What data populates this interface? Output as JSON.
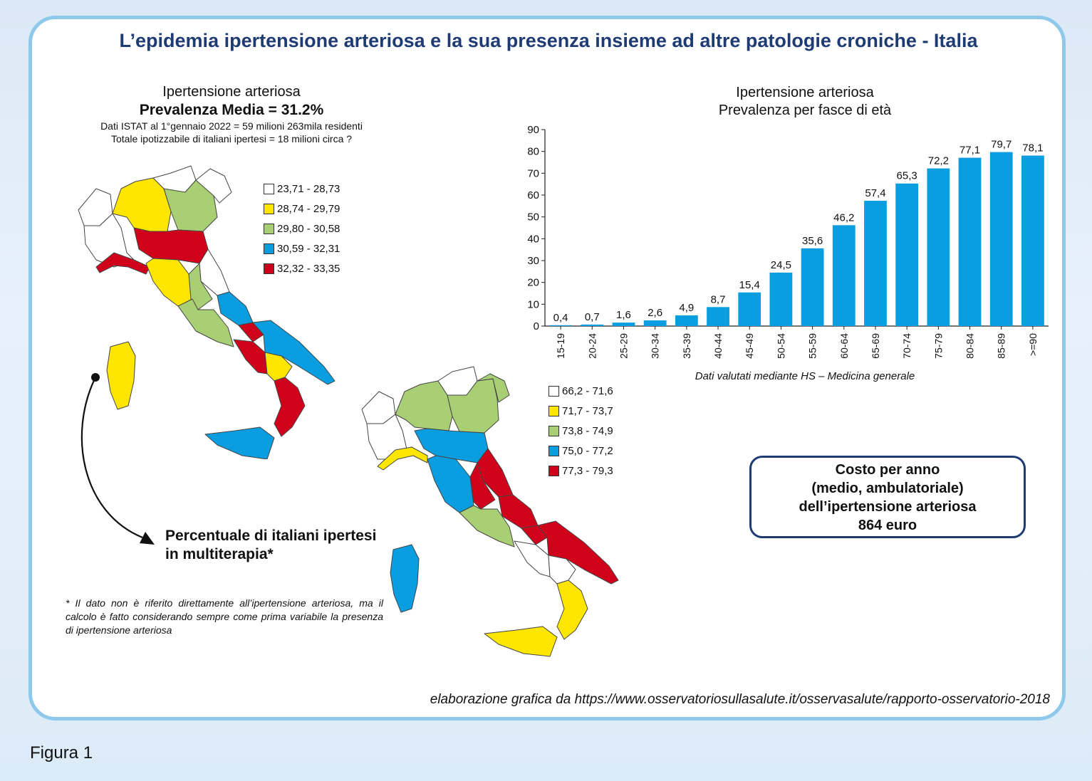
{
  "title": "L’epidemia ipertensione arteriosa e la sua presenza insieme ad altre patologie croniche - Italia",
  "left_block": {
    "line1": "Ipertensione arteriosa",
    "line2": "Prevalenza Media = 31.2%",
    "line3": "Dati ISTAT al 1°gennaio 2022 = 59 milioni 263mila residenti",
    "line4": "Totale ipotizzabile di italiani ipertesi = 18 milioni circa ?"
  },
  "legend1": [
    {
      "label": "23,71 - 28,73",
      "color": "#ffffff"
    },
    {
      "label": "28,74 - 29,79",
      "color": "#ffe600"
    },
    {
      "label": "29,80 - 30,58",
      "color": "#a9cf74"
    },
    {
      "label": "30,59 - 32,31",
      "color": "#0a9ee0"
    },
    {
      "label": "32,32 - 33,35",
      "color": "#d0021b"
    }
  ],
  "legend2": [
    {
      "label": "66,2 - 71,6",
      "color": "#ffffff"
    },
    {
      "label": "71,7 - 73,7",
      "color": "#ffe600"
    },
    {
      "label": "73,8 - 74,9",
      "color": "#a9cf74"
    },
    {
      "label": "75,0 - 77,2",
      "color": "#0a9ee0"
    },
    {
      "label": "77,3 - 79,3",
      "color": "#d0021b"
    }
  ],
  "multiterapia": {
    "line1": "Percentuale di italiani ipertesi",
    "line2": "in multiterapia*"
  },
  "note": "* Il dato non è riferito direttamente all’ipertensione arteriosa, ma il calcolo è fatto considerando sempre come prima variabile la presenza di ipertensione arteriosa",
  "cost": {
    "line1": "Costo per anno",
    "line2": "(medio, ambulatoriale)",
    "line3": "dell’ipertensione arteriosa",
    "line4": "864 euro"
  },
  "source": "elaborazione grafica da https://www.osservatoriosullasalute.it/osservasalute/rapporto-osservatorio-2018",
  "figure_label": "Figura 1",
  "chart_data": {
    "type": "bar",
    "title": "Ipertensione arteriosa",
    "subtitle": "Prevalenza per fasce di età",
    "caption": "Dati valutati mediante HS – Medicina generale",
    "categories": [
      "15-19",
      "20-24",
      "25-29",
      "30-34",
      "35-39",
      "40-44",
      "45-49",
      "50-54",
      "55-59",
      "60-64",
      "65-69",
      "70-74",
      "75-79",
      "80-84",
      "85-89",
      ">=90"
    ],
    "values": [
      0.4,
      0.7,
      1.6,
      2.6,
      4.9,
      8.7,
      15.4,
      24.5,
      35.6,
      46.2,
      57.4,
      65.3,
      72.2,
      77.1,
      79.7,
      78.1
    ],
    "value_labels": [
      "0,4",
      "0,7",
      "1,6",
      "2,6",
      "4,9",
      "8,7",
      "15,4",
      "24,5",
      "35,6",
      "46,2",
      "57,4",
      "65,3",
      "72,2",
      "77,1",
      "79,7",
      "78,1"
    ],
    "yticks": [
      "0",
      "10",
      "20",
      "30",
      "40",
      "50",
      "60",
      "70",
      "80",
      "90"
    ],
    "ylim": [
      0,
      90
    ],
    "bar_color": "#0a9ee0",
    "grid": false
  }
}
